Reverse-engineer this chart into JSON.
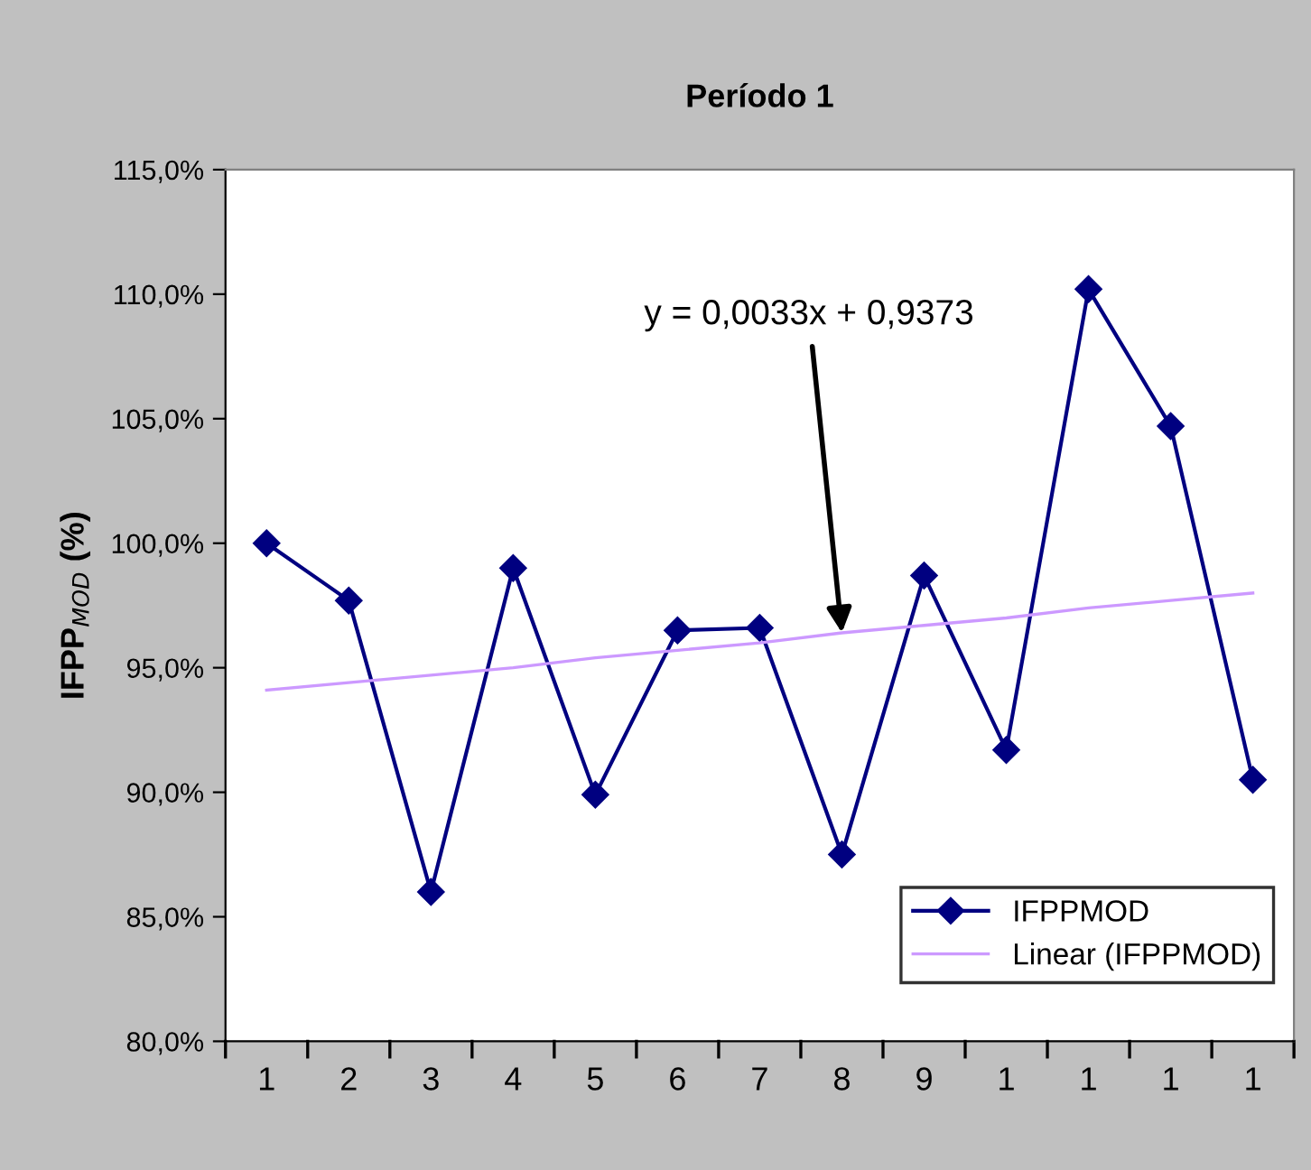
{
  "chart_data": {
    "type": "line",
    "title": "Período 1",
    "ylabel": "IFPP$_{MOD}$ (%)",
    "categories": [
      "1",
      "2",
      "3",
      "4",
      "5",
      "6",
      "7",
      "8",
      "9",
      "1",
      "1",
      "1",
      "1"
    ],
    "series": [
      {
        "name": "IFPPMOD",
        "color": "#000080",
        "marker": "diamond",
        "values": [
          100.0,
          97.7,
          86.0,
          99.0,
          89.9,
          96.5,
          96.6,
          87.5,
          98.7,
          91.7,
          110.2,
          104.7,
          90.5
        ]
      },
      {
        "name": "Linear (IFPPMOD)",
        "color": "#cc99ff",
        "marker": "none",
        "values": [
          94.1,
          94.4,
          94.7,
          95.0,
          95.4,
          95.7,
          96.0,
          96.4,
          96.7,
          97.0,
          97.4,
          97.7,
          98.0
        ]
      }
    ],
    "ylim": [
      80,
      115
    ],
    "yticks": [
      {
        "value": 80,
        "label": "80,0%"
      },
      {
        "value": 85,
        "label": "85,0%"
      },
      {
        "value": 90,
        "label": "90,0%"
      },
      {
        "value": 95,
        "label": "95,0%"
      },
      {
        "value": 100,
        "label": "100,0%"
      },
      {
        "value": 105,
        "label": "105,0%"
      },
      {
        "value": 110,
        "label": "110,0%"
      },
      {
        "value": 115,
        "label": "115,0%"
      }
    ],
    "annotations": [
      {
        "text": "y = 0,0033x + 0,9373",
        "x": "8",
        "y": 96.4
      }
    ],
    "grid": false,
    "legend": "bottom right",
    "line_style": "solid"
  }
}
